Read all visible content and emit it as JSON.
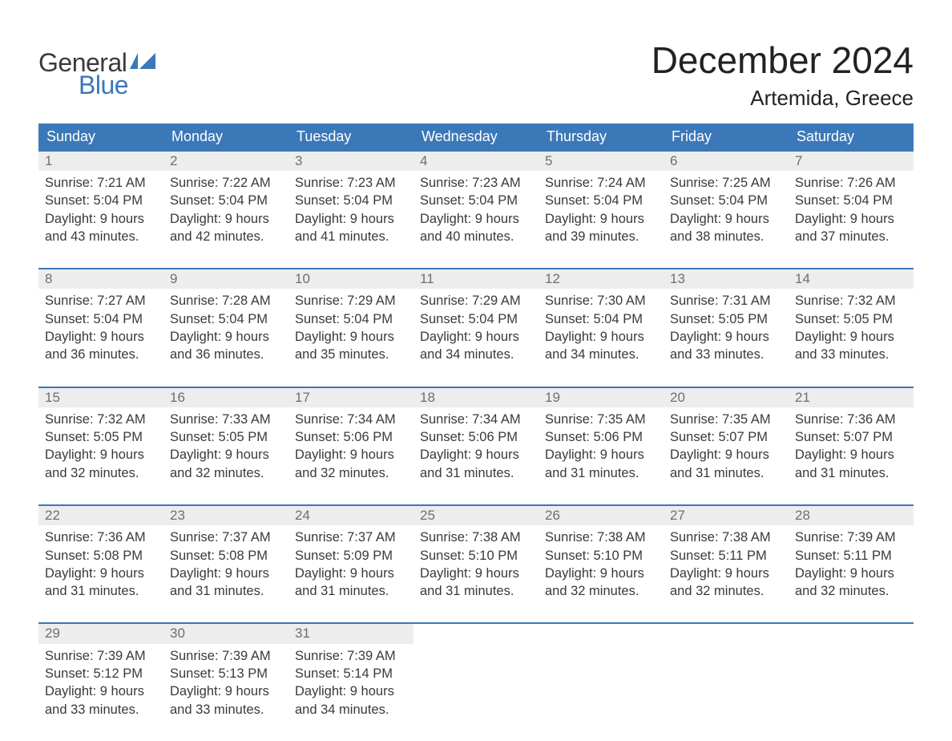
{
  "brand": {
    "word1": "General",
    "word2": "Blue",
    "word1_color": "#3a3a3a",
    "word2_color": "#3b78b8",
    "flag_color": "#3b78b8"
  },
  "title": "December 2024",
  "location": "Artemida, Greece",
  "colors": {
    "header_bg": "#3b78b8",
    "header_text": "#ffffff",
    "daynum_bg": "#ededed",
    "daynum_text": "#6f6f6f",
    "body_text": "#3a3a3a",
    "week_border": "#3b78b8",
    "page_bg": "#ffffff"
  },
  "fonts": {
    "title_size_pt": 34,
    "location_size_pt": 20,
    "header_cell_size_pt": 14,
    "body_size_pt": 12
  },
  "weekdays": [
    "Sunday",
    "Monday",
    "Tuesday",
    "Wednesday",
    "Thursday",
    "Friday",
    "Saturday"
  ],
  "weeks": [
    [
      {
        "n": "1",
        "sunrise": "Sunrise: 7:21 AM",
        "sunset": "Sunset: 5:04 PM",
        "day1": "Daylight: 9 hours",
        "day2": "and 43 minutes."
      },
      {
        "n": "2",
        "sunrise": "Sunrise: 7:22 AM",
        "sunset": "Sunset: 5:04 PM",
        "day1": "Daylight: 9 hours",
        "day2": "and 42 minutes."
      },
      {
        "n": "3",
        "sunrise": "Sunrise: 7:23 AM",
        "sunset": "Sunset: 5:04 PM",
        "day1": "Daylight: 9 hours",
        "day2": "and 41 minutes."
      },
      {
        "n": "4",
        "sunrise": "Sunrise: 7:23 AM",
        "sunset": "Sunset: 5:04 PM",
        "day1": "Daylight: 9 hours",
        "day2": "and 40 minutes."
      },
      {
        "n": "5",
        "sunrise": "Sunrise: 7:24 AM",
        "sunset": "Sunset: 5:04 PM",
        "day1": "Daylight: 9 hours",
        "day2": "and 39 minutes."
      },
      {
        "n": "6",
        "sunrise": "Sunrise: 7:25 AM",
        "sunset": "Sunset: 5:04 PM",
        "day1": "Daylight: 9 hours",
        "day2": "and 38 minutes."
      },
      {
        "n": "7",
        "sunrise": "Sunrise: 7:26 AM",
        "sunset": "Sunset: 5:04 PM",
        "day1": "Daylight: 9 hours",
        "day2": "and 37 minutes."
      }
    ],
    [
      {
        "n": "8",
        "sunrise": "Sunrise: 7:27 AM",
        "sunset": "Sunset: 5:04 PM",
        "day1": "Daylight: 9 hours",
        "day2": "and 36 minutes."
      },
      {
        "n": "9",
        "sunrise": "Sunrise: 7:28 AM",
        "sunset": "Sunset: 5:04 PM",
        "day1": "Daylight: 9 hours",
        "day2": "and 36 minutes."
      },
      {
        "n": "10",
        "sunrise": "Sunrise: 7:29 AM",
        "sunset": "Sunset: 5:04 PM",
        "day1": "Daylight: 9 hours",
        "day2": "and 35 minutes."
      },
      {
        "n": "11",
        "sunrise": "Sunrise: 7:29 AM",
        "sunset": "Sunset: 5:04 PM",
        "day1": "Daylight: 9 hours",
        "day2": "and 34 minutes."
      },
      {
        "n": "12",
        "sunrise": "Sunrise: 7:30 AM",
        "sunset": "Sunset: 5:04 PM",
        "day1": "Daylight: 9 hours",
        "day2": "and 34 minutes."
      },
      {
        "n": "13",
        "sunrise": "Sunrise: 7:31 AM",
        "sunset": "Sunset: 5:05 PM",
        "day1": "Daylight: 9 hours",
        "day2": "and 33 minutes."
      },
      {
        "n": "14",
        "sunrise": "Sunrise: 7:32 AM",
        "sunset": "Sunset: 5:05 PM",
        "day1": "Daylight: 9 hours",
        "day2": "and 33 minutes."
      }
    ],
    [
      {
        "n": "15",
        "sunrise": "Sunrise: 7:32 AM",
        "sunset": "Sunset: 5:05 PM",
        "day1": "Daylight: 9 hours",
        "day2": "and 32 minutes."
      },
      {
        "n": "16",
        "sunrise": "Sunrise: 7:33 AM",
        "sunset": "Sunset: 5:05 PM",
        "day1": "Daylight: 9 hours",
        "day2": "and 32 minutes."
      },
      {
        "n": "17",
        "sunrise": "Sunrise: 7:34 AM",
        "sunset": "Sunset: 5:06 PM",
        "day1": "Daylight: 9 hours",
        "day2": "and 32 minutes."
      },
      {
        "n": "18",
        "sunrise": "Sunrise: 7:34 AM",
        "sunset": "Sunset: 5:06 PM",
        "day1": "Daylight: 9 hours",
        "day2": "and 31 minutes."
      },
      {
        "n": "19",
        "sunrise": "Sunrise: 7:35 AM",
        "sunset": "Sunset: 5:06 PM",
        "day1": "Daylight: 9 hours",
        "day2": "and 31 minutes."
      },
      {
        "n": "20",
        "sunrise": "Sunrise: 7:35 AM",
        "sunset": "Sunset: 5:07 PM",
        "day1": "Daylight: 9 hours",
        "day2": "and 31 minutes."
      },
      {
        "n": "21",
        "sunrise": "Sunrise: 7:36 AM",
        "sunset": "Sunset: 5:07 PM",
        "day1": "Daylight: 9 hours",
        "day2": "and 31 minutes."
      }
    ],
    [
      {
        "n": "22",
        "sunrise": "Sunrise: 7:36 AM",
        "sunset": "Sunset: 5:08 PM",
        "day1": "Daylight: 9 hours",
        "day2": "and 31 minutes."
      },
      {
        "n": "23",
        "sunrise": "Sunrise: 7:37 AM",
        "sunset": "Sunset: 5:08 PM",
        "day1": "Daylight: 9 hours",
        "day2": "and 31 minutes."
      },
      {
        "n": "24",
        "sunrise": "Sunrise: 7:37 AM",
        "sunset": "Sunset: 5:09 PM",
        "day1": "Daylight: 9 hours",
        "day2": "and 31 minutes."
      },
      {
        "n": "25",
        "sunrise": "Sunrise: 7:38 AM",
        "sunset": "Sunset: 5:10 PM",
        "day1": "Daylight: 9 hours",
        "day2": "and 31 minutes."
      },
      {
        "n": "26",
        "sunrise": "Sunrise: 7:38 AM",
        "sunset": "Sunset: 5:10 PM",
        "day1": "Daylight: 9 hours",
        "day2": "and 32 minutes."
      },
      {
        "n": "27",
        "sunrise": "Sunrise: 7:38 AM",
        "sunset": "Sunset: 5:11 PM",
        "day1": "Daylight: 9 hours",
        "day2": "and 32 minutes."
      },
      {
        "n": "28",
        "sunrise": "Sunrise: 7:39 AM",
        "sunset": "Sunset: 5:11 PM",
        "day1": "Daylight: 9 hours",
        "day2": "and 32 minutes."
      }
    ],
    [
      {
        "n": "29",
        "sunrise": "Sunrise: 7:39 AM",
        "sunset": "Sunset: 5:12 PM",
        "day1": "Daylight: 9 hours",
        "day2": "and 33 minutes."
      },
      {
        "n": "30",
        "sunrise": "Sunrise: 7:39 AM",
        "sunset": "Sunset: 5:13 PM",
        "day1": "Daylight: 9 hours",
        "day2": "and 33 minutes."
      },
      {
        "n": "31",
        "sunrise": "Sunrise: 7:39 AM",
        "sunset": "Sunset: 5:14 PM",
        "day1": "Daylight: 9 hours",
        "day2": "and 34 minutes."
      },
      null,
      null,
      null,
      null
    ]
  ]
}
